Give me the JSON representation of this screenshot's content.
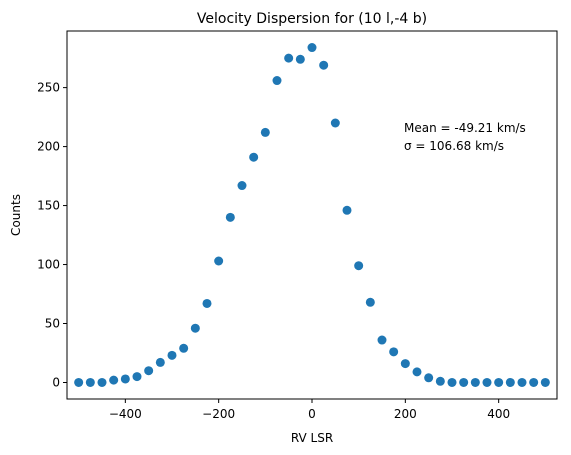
{
  "chart_data": {
    "type": "scatter",
    "title": "Velocity Dispersion for (10 l,-4 b)",
    "xlabel": "RV LSR",
    "ylabel": "Counts",
    "xlim": [
      -525,
      525
    ],
    "ylim": [
      -14,
      298
    ],
    "xticks": [
      -400,
      -200,
      0,
      200,
      400
    ],
    "xtick_labels": [
      "−400",
      "−200",
      "0",
      "200",
      "400"
    ],
    "yticks": [
      0,
      50,
      100,
      150,
      200,
      250
    ],
    "ytick_labels": [
      "0",
      "50",
      "100",
      "150",
      "200",
      "250"
    ],
    "grid": false,
    "marker_color": "#1f77b4",
    "annotation_lines": [
      "Mean = -49.21 km/s",
      "σ = 106.68 km/s"
    ],
    "x": [
      -500,
      -475,
      -450,
      -425,
      -400,
      -375,
      -350,
      -325,
      -300,
      -275,
      -250,
      -225,
      -200,
      -175,
      -150,
      -125,
      -100,
      -75,
      -50,
      -25,
      0,
      25,
      50,
      75,
      100,
      125,
      150,
      175,
      200,
      225,
      250,
      275,
      300,
      325,
      350,
      375,
      400,
      425,
      450,
      475,
      500
    ],
    "y": [
      0,
      0,
      0,
      2,
      3,
      5,
      10,
      17,
      23,
      29,
      46,
      67,
      103,
      140,
      167,
      191,
      212,
      256,
      275,
      274,
      284,
      269,
      220,
      146,
      99,
      68,
      36,
      26,
      16,
      9,
      4,
      1,
      0,
      0,
      0,
      0,
      0,
      0,
      0,
      0,
      0
    ]
  }
}
